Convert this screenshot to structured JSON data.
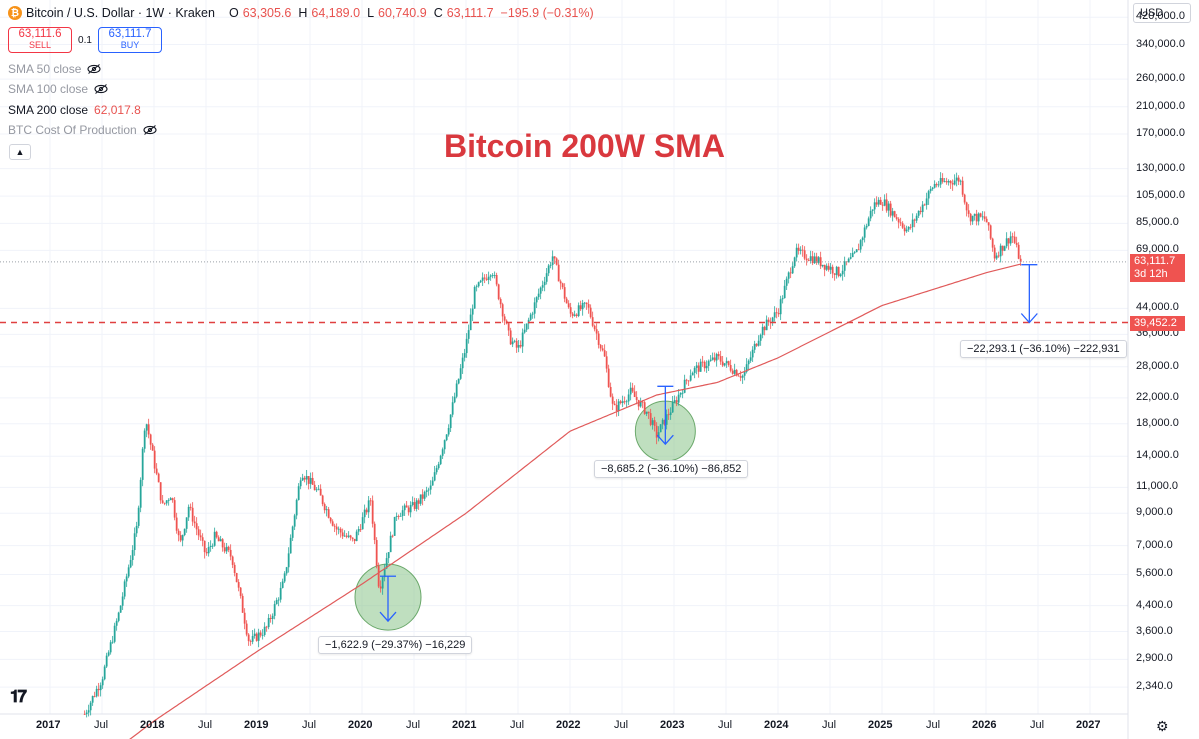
{
  "header": {
    "symbol": "Bitcoin / U.S. Dollar · 1W · Kraken",
    "open_label": "O",
    "open": "63,305.6",
    "high_label": "H",
    "high": "64,189.0",
    "low_label": "L",
    "low": "60,740.9",
    "close_label": "C",
    "close": "63,111.7",
    "change": "−195.9 (−0.31%)"
  },
  "trade": {
    "sell_price": "63,111.6",
    "sell_label": "SELL",
    "spread": "0.1",
    "buy_price": "63,111.7",
    "buy_label": "BUY"
  },
  "indicators": [
    {
      "label": "SMA 50 close",
      "value": "",
      "hidden": true
    },
    {
      "label": "SMA 100 close",
      "value": "",
      "hidden": true
    },
    {
      "label": "SMA 200 close",
      "value": "62,017.8",
      "hidden": false
    },
    {
      "label": "BTC Cost Of Production",
      "value": "",
      "hidden": true
    }
  ],
  "currency": "USD",
  "colors": {
    "up": "#26a69a",
    "down": "#ef5350",
    "sma": "#e05a5a",
    "support": "#e04040",
    "measure": "#2962ff",
    "circle": "#8bc48a",
    "title": "#d9383e"
  },
  "price_tag": {
    "price": "63,111.7",
    "countdown": "3d 12h"
  },
  "support_tag": "39,452.2",
  "measurements": [
    {
      "text": "−1,622.9 (−29.37%) −16,229",
      "from": 5526,
      "to": 3903
    },
    {
      "text": "−8,685.2 (−36.10%) −86,852",
      "from": 24060,
      "to": 15375
    },
    {
      "text": "−22,293.1 (−36.10%) −222,931",
      "from": 61745,
      "to": 39452
    }
  ],
  "chart_data": {
    "type": "candlestick",
    "title": "Bitcoin 200W SMA",
    "xlabel": "",
    "ylabel": "",
    "scale": "log",
    "ylim": [
      1900,
      480000
    ],
    "y_ticks": [
      "420,000.0",
      "340,000.0",
      "260,000.0",
      "210,000.0",
      "170,000.0",
      "130,000.0",
      "105,000.0",
      "85,000.0",
      "69,000.0",
      "44,000.0",
      "36,000.0",
      "28,000.0",
      "22,000.0",
      "18,000.0",
      "14,000.0",
      "11,000.0",
      "9,000.0",
      "7,000.0",
      "5,600.0",
      "4,400.0",
      "3,600.0",
      "2,900.0",
      "2,340.0"
    ],
    "x_ticks": [
      "2017",
      "Jul",
      "2018",
      "Jul",
      "2019",
      "Jul",
      "2020",
      "Jul",
      "2021",
      "Jul",
      "2022",
      "Jul",
      "2023",
      "Jul",
      "2024",
      "Jul",
      "2025",
      "Jul",
      "2026",
      "Jul",
      "2027"
    ],
    "x_tick_dates": [
      "2017-01",
      "2017-07",
      "2018-01",
      "2018-07",
      "2019-01",
      "2019-07",
      "2020-01",
      "2020-07",
      "2021-01",
      "2021-07",
      "2022-01",
      "2022-07",
      "2023-01",
      "2023-07",
      "2024-01",
      "2024-07",
      "2025-01",
      "2025-07",
      "2026-01",
      "2026-07",
      "2027-01"
    ],
    "price_anchors": [
      {
        "date": "2017-05",
        "price": 1900
      },
      {
        "date": "2017-07",
        "price": 2500
      },
      {
        "date": "2017-09",
        "price": 4200
      },
      {
        "date": "2017-11",
        "price": 8000
      },
      {
        "date": "2017-12",
        "price": 19000
      },
      {
        "date": "2018-02",
        "price": 9500
      },
      {
        "date": "2018-03",
        "price": 10500
      },
      {
        "date": "2018-04",
        "price": 7000
      },
      {
        "date": "2018-05",
        "price": 9500
      },
      {
        "date": "2018-07",
        "price": 6500
      },
      {
        "date": "2018-08",
        "price": 7500
      },
      {
        "date": "2018-10",
        "price": 6400
      },
      {
        "date": "2018-12",
        "price": 3300
      },
      {
        "date": "2019-02",
        "price": 3700
      },
      {
        "date": "2019-04",
        "price": 5300
      },
      {
        "date": "2019-06",
        "price": 12500
      },
      {
        "date": "2019-08",
        "price": 10500
      },
      {
        "date": "2019-10",
        "price": 8000
      },
      {
        "date": "2019-12",
        "price": 7200
      },
      {
        "date": "2020-02",
        "price": 10000
      },
      {
        "date": "2020-03",
        "price": 5000
      },
      {
        "date": "2020-05",
        "price": 9000
      },
      {
        "date": "2020-07",
        "price": 9500
      },
      {
        "date": "2020-09",
        "price": 11000
      },
      {
        "date": "2020-11",
        "price": 18000
      },
      {
        "date": "2021-01",
        "price": 33000
      },
      {
        "date": "2021-02",
        "price": 50000
      },
      {
        "date": "2021-04",
        "price": 60000
      },
      {
        "date": "2021-06",
        "price": 35000
      },
      {
        "date": "2021-07",
        "price": 32000
      },
      {
        "date": "2021-09",
        "price": 46000
      },
      {
        "date": "2021-11",
        "price": 66000
      },
      {
        "date": "2022-01",
        "price": 42000
      },
      {
        "date": "2022-03",
        "price": 45000
      },
      {
        "date": "2022-05",
        "price": 30000
      },
      {
        "date": "2022-06",
        "price": 20000
      },
      {
        "date": "2022-08",
        "price": 23000
      },
      {
        "date": "2022-10",
        "price": 19500
      },
      {
        "date": "2022-11",
        "price": 16500
      },
      {
        "date": "2023-01",
        "price": 21000
      },
      {
        "date": "2023-03",
        "price": 27000
      },
      {
        "date": "2023-06",
        "price": 30000
      },
      {
        "date": "2023-09",
        "price": 26000
      },
      {
        "date": "2023-11",
        "price": 37000
      },
      {
        "date": "2024-01",
        "price": 43000
      },
      {
        "date": "2024-03",
        "price": 68000
      },
      {
        "date": "2024-05",
        "price": 65000
      },
      {
        "date": "2024-08",
        "price": 58000
      },
      {
        "date": "2024-10",
        "price": 67000
      },
      {
        "date": "2024-12",
        "price": 98000
      },
      {
        "date": "2025-01",
        "price": 102000
      },
      {
        "date": "2025-04",
        "price": 80000
      },
      {
        "date": "2025-07",
        "price": 115000
      },
      {
        "date": "2025-10",
        "price": 120000
      },
      {
        "date": "2025-11",
        "price": 90000
      },
      {
        "date": "2026-01",
        "price": 88000
      },
      {
        "date": "2026-02",
        "price": 66000
      },
      {
        "date": "2026-04",
        "price": 78000
      },
      {
        "date": "2026-05",
        "price": 63111
      }
    ],
    "sma_200w": [
      {
        "date": "2017-05",
        "price": 1200
      },
      {
        "date": "2018-01",
        "price": 1800
      },
      {
        "date": "2019-01",
        "price": 3100
      },
      {
        "date": "2020-01",
        "price": 5200
      },
      {
        "date": "2021-01",
        "price": 9000
      },
      {
        "date": "2022-01",
        "price": 17000
      },
      {
        "date": "2022-11",
        "price": 22500
      },
      {
        "date": "2023-06",
        "price": 24800
      },
      {
        "date": "2024-01",
        "price": 30000
      },
      {
        "date": "2025-01",
        "price": 45000
      },
      {
        "date": "2026-01",
        "price": 58000
      },
      {
        "date": "2026-05",
        "price": 62017.8
      }
    ],
    "support_level": 39452.2,
    "last_price": 63111.7
  }
}
